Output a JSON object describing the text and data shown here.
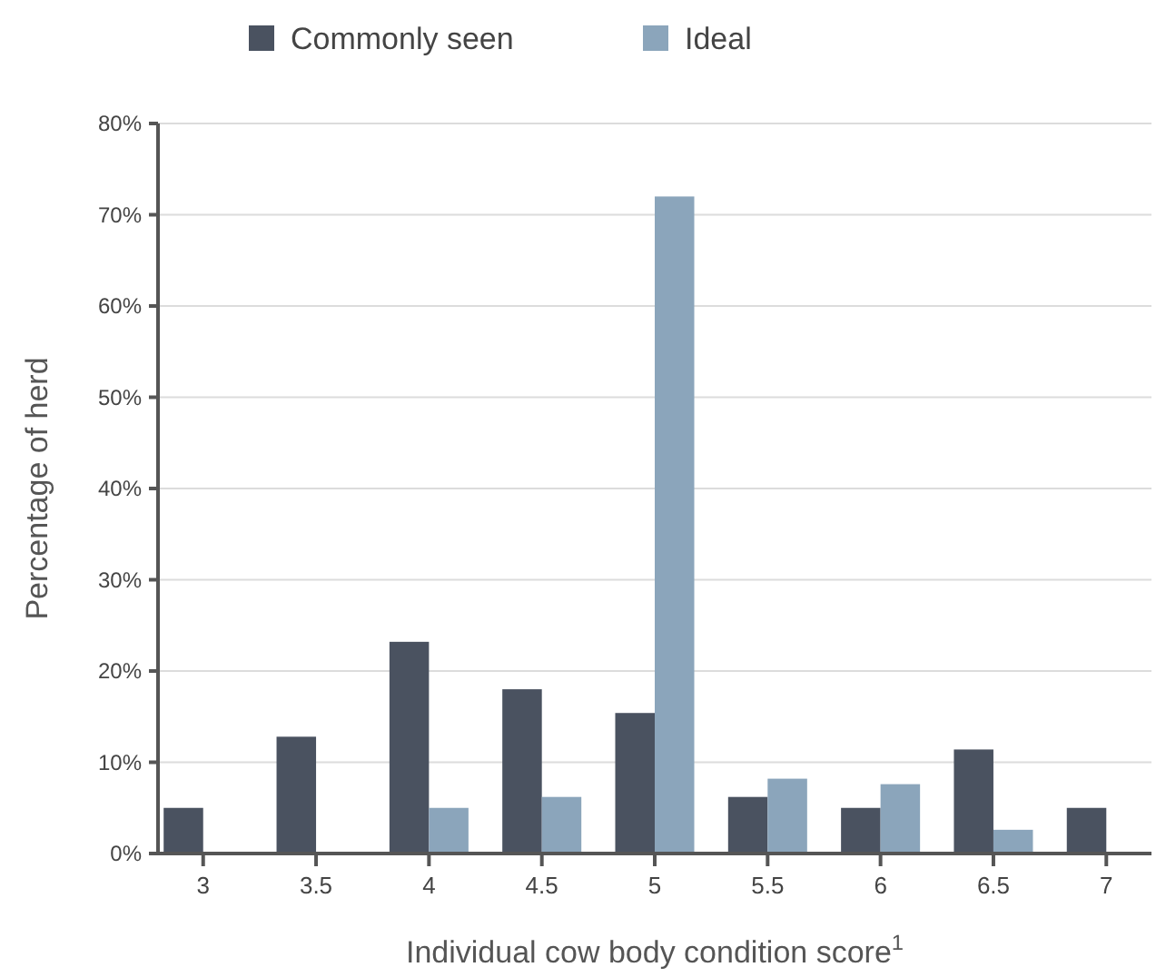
{
  "chart_data": {
    "type": "bar",
    "xlabel": "Individual cow body condition score$^{1}$",
    "ylabel": "Percentage of herd",
    "categories": [
      "3",
      "3.5",
      "4",
      "4.5",
      "5",
      "5.5",
      "6",
      "6.5",
      "7"
    ],
    "series": [
      {
        "name": "Commonly seen",
        "color": "#4a5260",
        "values": [
          5,
          12.8,
          23.2,
          18,
          15.4,
          6.2,
          5,
          11.4,
          5
        ]
      },
      {
        "name": "Ideal",
        "color": "#8ba5bb",
        "values": [
          0,
          0,
          5,
          6.2,
          72,
          8.2,
          7.6,
          2.6,
          0
        ]
      }
    ],
    "ylim": [
      0,
      80
    ],
    "yticks": [
      {
        "value": 0,
        "label": "0%"
      },
      {
        "value": 10,
        "label": "10%"
      },
      {
        "value": 20,
        "label": "20%"
      },
      {
        "value": 30,
        "label": "30%"
      },
      {
        "value": 40,
        "label": "40%"
      },
      {
        "value": 50,
        "label": "50%"
      },
      {
        "value": 60,
        "label": "60%"
      },
      {
        "value": 70,
        "label": "70%"
      },
      {
        "value": 80,
        "label": "80%"
      }
    ],
    "grid": "y",
    "legend": "top"
  }
}
